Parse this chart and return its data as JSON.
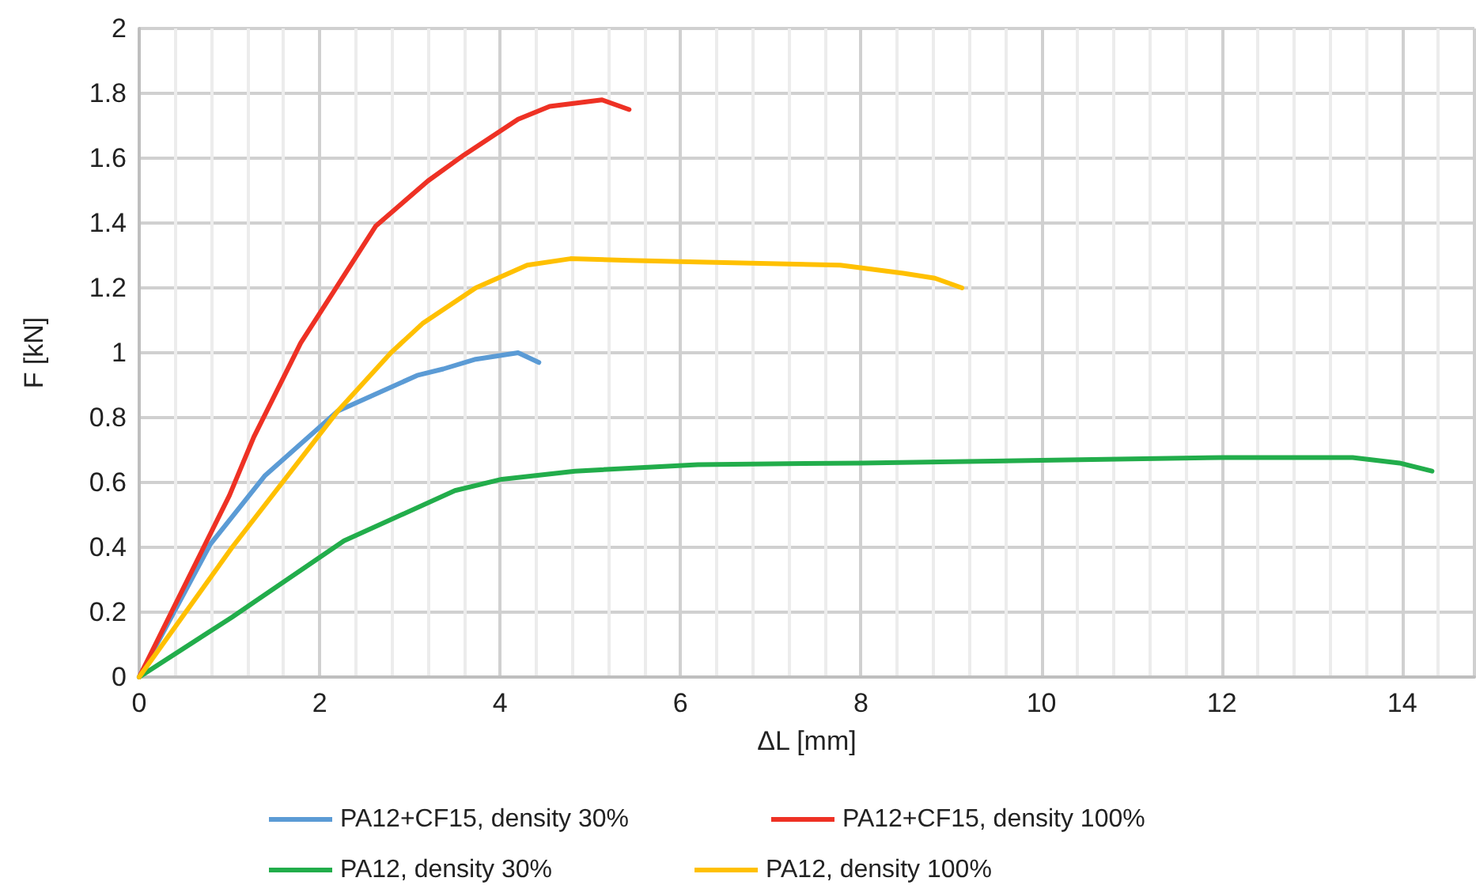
{
  "chart_data": {
    "type": "line",
    "xlabel": "ΔL [mm]",
    "ylabel": "F [kN]",
    "xlim": [
      0,
      14.8
    ],
    "xticks": [
      0,
      2,
      4,
      6,
      8,
      10,
      12,
      14
    ],
    "ylim": [
      0,
      2
    ],
    "yticks": [
      0,
      0.2,
      0.4,
      0.6,
      0.8,
      1,
      1.2,
      1.4,
      1.6,
      1.8,
      2
    ],
    "grid": true,
    "legend": "bottom",
    "marker": "none",
    "line_style": "solid",
    "series": [
      {
        "name": "PA12+CF15, density 30%",
        "color": "#5b9bd5",
        "x": [
          0,
          0.79,
          1.39,
          2.2,
          3.08,
          3.37,
          3.73,
          4.2,
          4.43
        ],
        "values": [
          0,
          0.41,
          0.62,
          0.82,
          0.93,
          0.95,
          0.98,
          1.0,
          0.97
        ]
      },
      {
        "name": "PA12+CF15, density 100%",
        "color": "#ee3124",
        "x": [
          0,
          1.0,
          1.27,
          1.79,
          2.62,
          3.2,
          3.6,
          4.2,
          4.55,
          5.13,
          5.43
        ],
        "values": [
          0,
          0.56,
          0.74,
          1.03,
          1.39,
          1.53,
          1.61,
          1.72,
          1.76,
          1.78,
          1.75
        ]
      },
      {
        "name": "PA12, density 30%",
        "color": "#22ad4b",
        "x": [
          0,
          1.03,
          2.27,
          3.5,
          4.02,
          4.83,
          6.19,
          8.0,
          10.0,
          12.0,
          13.45,
          13.97,
          14.33
        ],
        "values": [
          0,
          0.185,
          0.42,
          0.575,
          0.61,
          0.635,
          0.655,
          0.66,
          0.668,
          0.677,
          0.677,
          0.66,
          0.635
        ]
      },
      {
        "name": "PA12, density 100%",
        "color": "#ffc000",
        "x": [
          0,
          1.03,
          2.2,
          2.79,
          3.14,
          3.73,
          4.3,
          4.78,
          5.43,
          6.19,
          7.77,
          8.47,
          8.82,
          9.12
        ],
        "values": [
          0,
          0.4,
          0.82,
          1.0,
          1.09,
          1.2,
          1.27,
          1.29,
          1.285,
          1.28,
          1.27,
          1.245,
          1.23,
          1.2
        ]
      }
    ]
  }
}
